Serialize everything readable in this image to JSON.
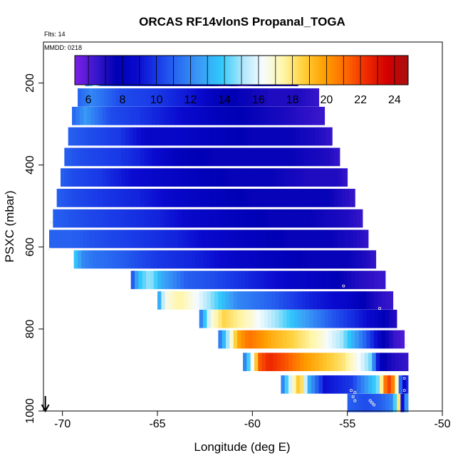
{
  "chart_data": {
    "type": "heatmap",
    "title": "ORCAS RF14vlonS Propanal_TOGA",
    "annotations": [
      "Flts: 14",
      "MMDD: 0218"
    ],
    "xlabel": "Longitude (deg E)",
    "ylabel": "PSXC (mbar)",
    "xlim": [
      -71,
      -50
    ],
    "ylim": [
      1000,
      100
    ],
    "x_ticks": [
      -70,
      -65,
      -60,
      -55,
      -50
    ],
    "y_ticks": [
      200,
      400,
      600,
      800,
      1000
    ],
    "colorbar": {
      "range": [
        5.2,
        24.8
      ],
      "ticks": [
        6,
        8,
        10,
        12,
        14,
        16,
        18,
        20,
        22,
        24
      ],
      "colors": [
        "#7e1ee6",
        "#3b17cc",
        "#0000b5",
        "#0a0ad0",
        "#1a3ce8",
        "#2a6ef2",
        "#3a9bf6",
        "#2fc8fb",
        "#a8e6fb",
        "#f6fbff",
        "#fff6a8",
        "#ffcf3a",
        "#ff9e00",
        "#ff6a00",
        "#ef2a00",
        "#d20000",
        "#a81010"
      ]
    },
    "rows": [
      {
        "p": 185,
        "x0": -68.8,
        "x1": -57.6,
        "anchors": [
          [
            -68.8,
            11
          ],
          [
            -68.3,
            15.5
          ],
          [
            -68,
            11
          ],
          [
            -67,
            10
          ],
          [
            -64.5,
            9
          ],
          [
            -62.5,
            9
          ],
          [
            -61.6,
            6.5
          ],
          [
            -61,
            7.5
          ],
          [
            -60.5,
            6
          ],
          [
            -59.8,
            7.5
          ],
          [
            -58.5,
            7
          ]
        ]
      },
      {
        "p": 235,
        "x0": -69.2,
        "x1": -56.5,
        "anchors": [
          [
            -69.2,
            11
          ],
          [
            -68.5,
            12
          ],
          [
            -67,
            10.5
          ],
          [
            -65,
            10
          ],
          [
            -63,
            9
          ],
          [
            -62,
            8
          ],
          [
            -60.5,
            7.5
          ],
          [
            -59,
            7
          ],
          [
            -57.5,
            7
          ],
          [
            -56.5,
            6.5
          ]
        ]
      },
      {
        "p": 280,
        "x0": -69.5,
        "x1": -56.2,
        "anchors": [
          [
            -69.5,
            11
          ],
          [
            -68.8,
            12.5
          ],
          [
            -67.5,
            10.5
          ],
          [
            -66,
            10
          ],
          [
            -64,
            9
          ],
          [
            -62,
            8
          ],
          [
            -60,
            7.5
          ],
          [
            -58,
            7
          ],
          [
            -56.5,
            6.5
          ]
        ]
      },
      {
        "p": 330,
        "x0": -69.7,
        "x1": -55.8,
        "anchors": [
          [
            -69.7,
            11
          ],
          [
            -68.5,
            10.5
          ],
          [
            -67,
            10
          ],
          [
            -65.5,
            8.5
          ],
          [
            -64,
            8.5
          ],
          [
            -62,
            8
          ],
          [
            -60,
            7.5
          ],
          [
            -58,
            7.5
          ],
          [
            -56.5,
            7
          ],
          [
            -55.8,
            6.5
          ]
        ]
      },
      {
        "p": 380,
        "x0": -69.9,
        "x1": -55.4,
        "anchors": [
          [
            -69.9,
            11
          ],
          [
            -69,
            10.5
          ],
          [
            -67,
            10
          ],
          [
            -66,
            9.5
          ],
          [
            -64,
            8
          ],
          [
            -62,
            7.5
          ],
          [
            -60,
            7.5
          ],
          [
            -58,
            7.5
          ],
          [
            -56,
            7
          ],
          [
            -55.4,
            6.5
          ]
        ]
      },
      {
        "p": 430,
        "x0": -70.1,
        "x1": -55.0,
        "anchors": [
          [
            -70.1,
            11
          ],
          [
            -69.5,
            10.5
          ],
          [
            -68,
            10
          ],
          [
            -66.5,
            9
          ],
          [
            -65,
            8.5
          ],
          [
            -63,
            8
          ],
          [
            -61,
            7.5
          ],
          [
            -59,
            7.5
          ],
          [
            -57,
            7
          ],
          [
            -55.5,
            7
          ],
          [
            -55,
            6.5
          ]
        ]
      },
      {
        "p": 480,
        "x0": -70.3,
        "x1": -54.6,
        "anchors": [
          [
            -70.3,
            11
          ],
          [
            -69.5,
            10.5
          ],
          [
            -68,
            10
          ],
          [
            -66,
            9.5
          ],
          [
            -64,
            8.5
          ],
          [
            -62,
            8
          ],
          [
            -60,
            7.5
          ],
          [
            -58,
            7.5
          ],
          [
            -56,
            7.5
          ],
          [
            -54.6,
            6.5
          ]
        ]
      },
      {
        "p": 530,
        "x0": -70.5,
        "x1": -54.2,
        "anchors": [
          [
            -70.5,
            11
          ],
          [
            -69,
            10.5
          ],
          [
            -67,
            10
          ],
          [
            -65,
            9.5
          ],
          [
            -63,
            8.5
          ],
          [
            -61,
            8
          ],
          [
            -59,
            7.5
          ],
          [
            -57,
            7.5
          ],
          [
            -55,
            7
          ],
          [
            -54.2,
            6.5
          ]
        ]
      },
      {
        "p": 580,
        "x0": -70.7,
        "x1": -53.9,
        "anchors": [
          [
            -70.7,
            11
          ],
          [
            -69.5,
            11
          ],
          [
            -68,
            10.5
          ],
          [
            -66,
            10
          ],
          [
            -64,
            9.5
          ],
          [
            -62,
            8.5
          ],
          [
            -60,
            8
          ],
          [
            -58,
            7.5
          ],
          [
            -56,
            7.5
          ],
          [
            -54.5,
            7
          ],
          [
            -53.9,
            6.5
          ]
        ]
      },
      {
        "p": 630,
        "x0": -69.4,
        "x1": -53.5,
        "anchors": [
          [
            -69.4,
            14
          ],
          [
            -68.9,
            12
          ],
          [
            -68.4,
            11.5
          ],
          [
            -67,
            11
          ],
          [
            -65,
            10
          ],
          [
            -63,
            9.5
          ],
          [
            -61,
            8.5
          ],
          [
            -59,
            8
          ],
          [
            -57,
            7.5
          ],
          [
            -55,
            7.5
          ],
          [
            -54,
            7
          ],
          [
            -53.5,
            6.5
          ]
        ]
      },
      {
        "p": 680,
        "x0": -66.4,
        "x1": -53.0,
        "anchors": [
          [
            -66.4,
            10
          ],
          [
            -66,
            13.5
          ],
          [
            -65.4,
            15
          ],
          [
            -64.8,
            13
          ],
          [
            -63.5,
            11
          ],
          [
            -62,
            10.5
          ],
          [
            -60,
            9.5
          ],
          [
            -58,
            8.5
          ],
          [
            -56,
            8
          ],
          [
            -54.5,
            7
          ],
          [
            -53.3,
            6.5
          ]
        ]
      },
      {
        "p": 730,
        "x0": -65.0,
        "x1": -52.6,
        "anchors": [
          [
            -65.0,
            12
          ],
          [
            -64.6,
            16.5
          ],
          [
            -63.8,
            17.5
          ],
          [
            -62.8,
            16
          ],
          [
            -61.8,
            14
          ],
          [
            -60.8,
            12
          ],
          [
            -59,
            11
          ],
          [
            -57,
            9.5
          ],
          [
            -55,
            8.5
          ],
          [
            -53.5,
            7
          ],
          [
            -52.8,
            6.5
          ]
        ]
      },
      {
        "p": 775,
        "x0": -62.8,
        "x1": -52.4,
        "anchors": [
          [
            -62.8,
            11
          ],
          [
            -62.2,
            16.5
          ],
          [
            -61.5,
            18.5
          ],
          [
            -60.2,
            17
          ],
          [
            -58.8,
            15
          ],
          [
            -57.5,
            13
          ],
          [
            -56,
            11
          ],
          [
            -54.5,
            9.5
          ],
          [
            -53.2,
            8
          ],
          [
            -52.6,
            7
          ]
        ]
      },
      {
        "p": 825,
        "x0": -61.8,
        "x1": -52.0,
        "anchors": [
          [
            -61.8,
            11
          ],
          [
            -61.3,
            15
          ],
          [
            -60.8,
            19.5
          ],
          [
            -60.2,
            21
          ],
          [
            -59,
            19.5
          ],
          [
            -57.8,
            18.5
          ],
          [
            -56.5,
            17
          ],
          [
            -55.3,
            15
          ],
          [
            -54.2,
            11.5
          ],
          [
            -53.2,
            8
          ],
          [
            -52.5,
            6.5
          ],
          [
            -52.0,
            6
          ]
        ]
      },
      {
        "p": 880,
        "x0": -60.5,
        "x1": -51.8,
        "anchors": [
          [
            -60.5,
            11
          ],
          [
            -60.1,
            15
          ],
          [
            -59.6,
            21.5
          ],
          [
            -59.1,
            22.5
          ],
          [
            -58.2,
            21.5
          ],
          [
            -57.2,
            20
          ],
          [
            -56.2,
            19
          ],
          [
            -55.2,
            18
          ],
          [
            -54.3,
            16
          ],
          [
            -53.8,
            14.5
          ],
          [
            -53.3,
            8
          ],
          [
            -52.6,
            7
          ],
          [
            -51.8,
            6.5
          ]
        ]
      },
      {
        "p": 935,
        "x0": -58.5,
        "x1": -51.8,
        "anchors": [
          [
            -58.5,
            11
          ],
          [
            -58.1,
            15
          ],
          [
            -57.5,
            19.5
          ],
          [
            -57.0,
            13
          ],
          [
            -56.2,
            9
          ],
          [
            -55.5,
            9.5
          ],
          [
            -54.8,
            10
          ],
          [
            -54.0,
            12.5
          ],
          [
            -53.4,
            14.5
          ],
          [
            -52.9,
            22.5
          ],
          [
            -52.5,
            20
          ],
          [
            -52.1,
            8
          ],
          [
            -51.8,
            10
          ]
        ]
      },
      {
        "p": 980,
        "x0": -55.0,
        "x1": -51.8,
        "anchors": [
          [
            -55.0,
            11
          ],
          [
            -54.0,
            10.5
          ],
          [
            -53.2,
            11
          ],
          [
            -52.6,
            12
          ],
          [
            -52.3,
            18
          ],
          [
            -52.1,
            9
          ],
          [
            -51.8,
            14
          ]
        ]
      }
    ],
    "markers": [
      [
        -68.2,
        205
      ],
      [
        -67.7,
        180
      ],
      [
        -67.3,
        180
      ],
      [
        -67.0,
        180
      ],
      [
        -66.7,
        180
      ],
      [
        -66.4,
        180
      ],
      [
        -66.1,
        180
      ],
      [
        -65.6,
        180
      ],
      [
        -61.9,
        180
      ],
      [
        -61.7,
        180
      ],
      [
        -60.7,
        180
      ],
      [
        -58.2,
        180
      ],
      [
        -70.6,
        540
      ],
      [
        -70.7,
        605
      ],
      [
        -55.2,
        695
      ],
      [
        -53.3,
        750
      ],
      [
        -55.5,
        805
      ],
      [
        -51.9,
        840
      ],
      [
        -52.0,
        920
      ],
      [
        -52.0,
        950
      ],
      [
        -54.8,
        950
      ],
      [
        -54.6,
        955
      ],
      [
        -54.7,
        965
      ],
      [
        -54.6,
        975
      ],
      [
        -53.8,
        975
      ],
      [
        -53.7,
        980
      ],
      [
        -53.6,
        985
      ]
    ],
    "arrow_x": -70.9
  }
}
